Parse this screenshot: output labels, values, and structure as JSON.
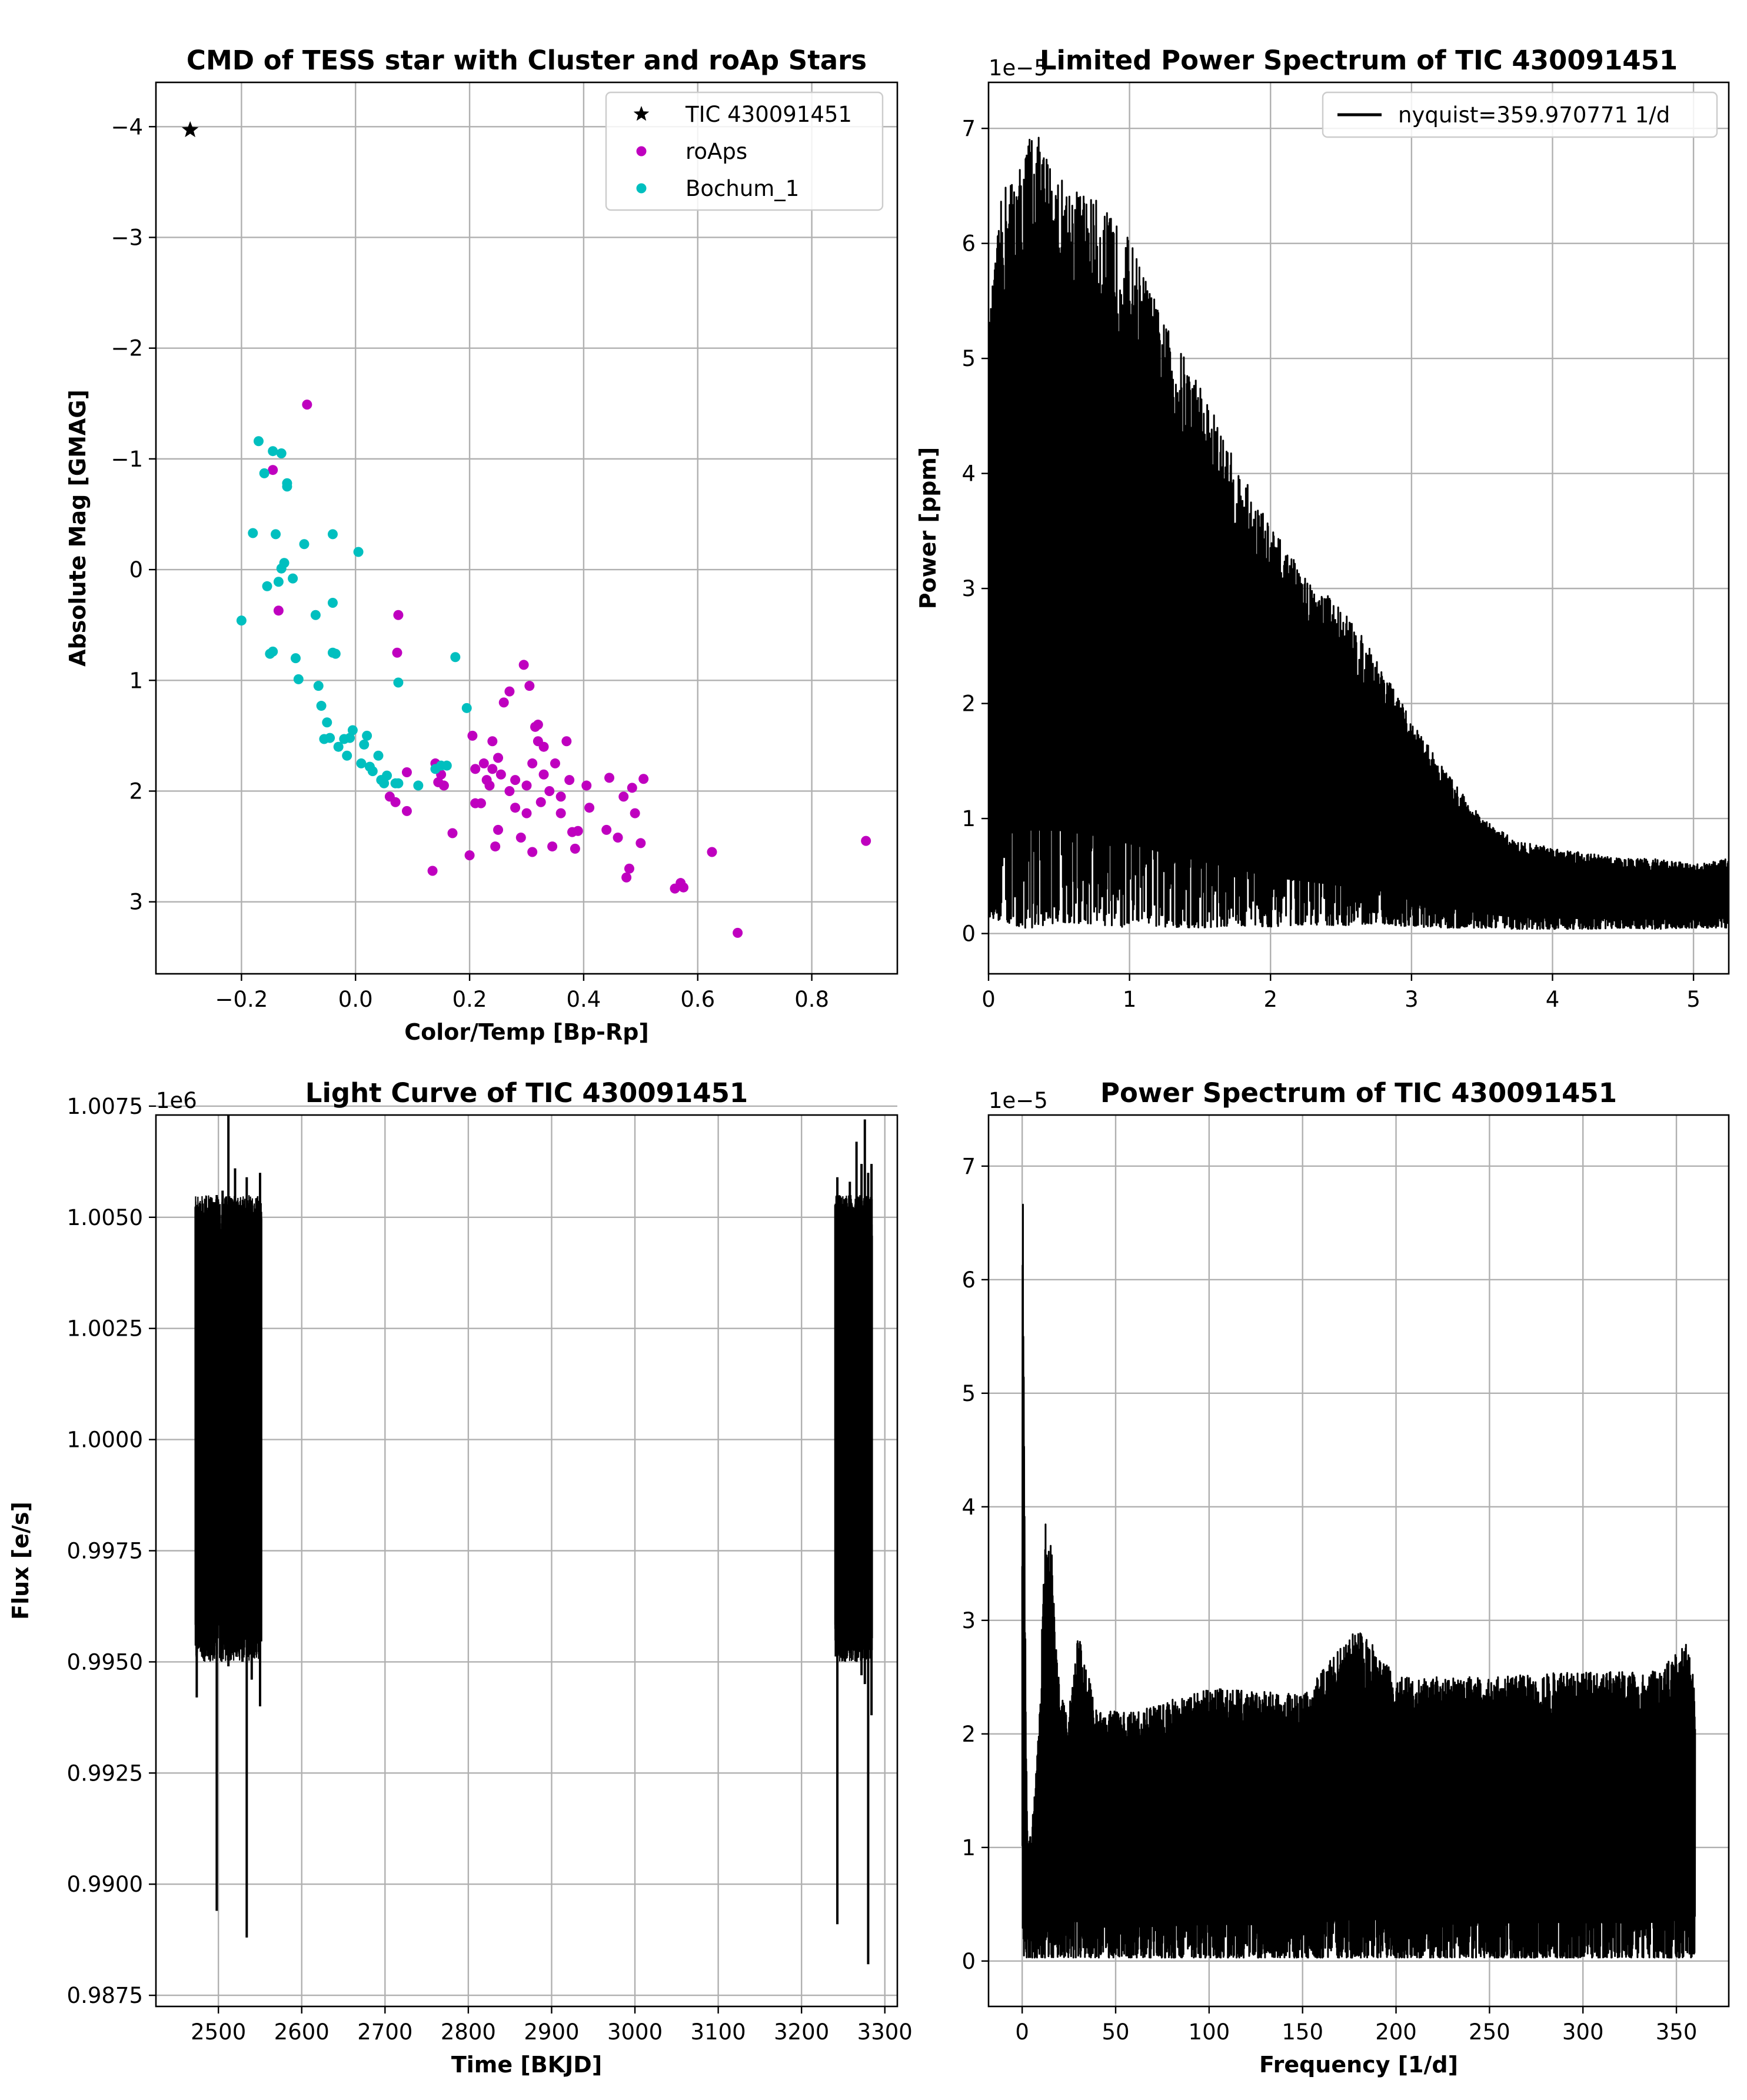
{
  "chart_data": [
    {
      "id": "cmd",
      "type": "scatter",
      "title": "CMD of TESS star with Cluster and roAp Stars",
      "xlabel": "Color/Temp [Bp-Rp]",
      "ylabel": "Absolute Mag [GMAG]",
      "xlim": [
        -0.35,
        0.95
      ],
      "ylim": [
        3.65,
        -4.4
      ],
      "y_inverted": true,
      "grid": true,
      "legend_position": "top-right",
      "xticks": [
        -0.2,
        0.0,
        0.2,
        0.4,
        0.6,
        0.8
      ],
      "xtick_labels": [
        "−0.2",
        "0.0",
        "0.2",
        "0.4",
        "0.6",
        "0.8"
      ],
      "yticks": [
        -4,
        -3,
        -2,
        -1,
        0,
        1,
        2,
        3
      ],
      "ytick_labels": [
        "−4",
        "−3",
        "−2",
        "−1",
        "0",
        "1",
        "2",
        "3"
      ],
      "series": [
        {
          "name": "TIC 430091451",
          "marker": "star",
          "color": "#000000",
          "points": [
            [
              -0.29,
              -3.97
            ]
          ]
        },
        {
          "name": "roAps",
          "marker": "circle",
          "color": "#bf00bf",
          "points": [
            [
              -0.085,
              -1.49
            ],
            [
              -0.145,
              -0.9
            ],
            [
              -0.135,
              0.37
            ],
            [
              0.075,
              0.41
            ],
            [
              0.073,
              0.75
            ],
            [
              0.09,
              1.83
            ],
            [
              0.06,
              2.05
            ],
            [
              0.07,
              2.1
            ],
            [
              0.09,
              2.18
            ],
            [
              0.135,
              2.72
            ],
            [
              0.14,
              1.75
            ],
            [
              0.15,
              1.85
            ],
            [
              0.155,
              1.95
            ],
            [
              0.145,
              1.92
            ],
            [
              0.17,
              2.38
            ],
            [
              0.2,
              2.58
            ],
            [
              0.205,
              1.5
            ],
            [
              0.21,
              1.8
            ],
            [
              0.21,
              2.11
            ],
            [
              0.22,
              2.11
            ],
            [
              0.225,
              1.75
            ],
            [
              0.23,
              1.9
            ],
            [
              0.235,
              1.95
            ],
            [
              0.24,
              1.55
            ],
            [
              0.24,
              1.8
            ],
            [
              0.245,
              2.5
            ],
            [
              0.25,
              1.7
            ],
            [
              0.25,
              2.35
            ],
            [
              0.255,
              1.85
            ],
            [
              0.26,
              1.2
            ],
            [
              0.27,
              2.0
            ],
            [
              0.27,
              1.1
            ],
            [
              0.28,
              1.9
            ],
            [
              0.28,
              2.15
            ],
            [
              0.29,
              2.42
            ],
            [
              0.295,
              0.86
            ],
            [
              0.3,
              1.95
            ],
            [
              0.3,
              2.2
            ],
            [
              0.305,
              1.05
            ],
            [
              0.31,
              1.75
            ],
            [
              0.31,
              2.55
            ],
            [
              0.315,
              1.42
            ],
            [
              0.32,
              1.55
            ],
            [
              0.32,
              1.4
            ],
            [
              0.325,
              2.1
            ],
            [
              0.33,
              1.85
            ],
            [
              0.33,
              1.6
            ],
            [
              0.34,
              2.0
            ],
            [
              0.345,
              2.5
            ],
            [
              0.35,
              1.75
            ],
            [
              0.36,
              2.2
            ],
            [
              0.36,
              2.05
            ],
            [
              0.37,
              1.55
            ],
            [
              0.375,
              1.9
            ],
            [
              0.38,
              2.37
            ],
            [
              0.385,
              2.52
            ],
            [
              0.39,
              2.36
            ],
            [
              0.405,
              1.95
            ],
            [
              0.41,
              2.15
            ],
            [
              0.44,
              2.35
            ],
            [
              0.445,
              1.88
            ],
            [
              0.46,
              2.42
            ],
            [
              0.47,
              2.05
            ],
            [
              0.475,
              2.78
            ],
            [
              0.48,
              2.7
            ],
            [
              0.485,
              1.97
            ],
            [
              0.49,
              2.2
            ],
            [
              0.5,
              2.47
            ],
            [
              0.505,
              1.89
            ],
            [
              0.56,
              2.88
            ],
            [
              0.57,
              2.83
            ],
            [
              0.575,
              2.87
            ],
            [
              0.625,
              2.55
            ],
            [
              0.67,
              3.28
            ],
            [
              0.895,
              2.45
            ]
          ]
        },
        {
          "name": "Bochum_1",
          "marker": "circle",
          "color": "#00bfbf",
          "points": [
            [
              -0.2,
              0.46
            ],
            [
              -0.18,
              -0.33
            ],
            [
              -0.17,
              -1.16
            ],
            [
              -0.16,
              -0.87
            ],
            [
              -0.155,
              0.15
            ],
            [
              -0.15,
              0.76
            ],
            [
              -0.145,
              -1.07
            ],
            [
              -0.145,
              0.74
            ],
            [
              -0.14,
              -0.32
            ],
            [
              -0.135,
              0.11
            ],
            [
              -0.13,
              -1.05
            ],
            [
              -0.125,
              -0.06
            ],
            [
              -0.13,
              -0.01
            ],
            [
              -0.12,
              -0.75
            ],
            [
              -0.12,
              -0.78
            ],
            [
              -0.11,
              0.08
            ],
            [
              -0.105,
              0.8
            ],
            [
              -0.1,
              0.99
            ],
            [
              -0.09,
              -0.23
            ],
            [
              -0.07,
              0.41
            ],
            [
              -0.065,
              1.05
            ],
            [
              -0.06,
              1.23
            ],
            [
              -0.055,
              1.53
            ],
            [
              -0.05,
              1.38
            ],
            [
              -0.045,
              1.52
            ],
            [
              -0.04,
              0.75
            ],
            [
              -0.04,
              -0.32
            ],
            [
              -0.04,
              0.3
            ],
            [
              -0.035,
              0.76
            ],
            [
              -0.03,
              1.6
            ],
            [
              -0.02,
              1.53
            ],
            [
              -0.01,
              1.52
            ],
            [
              -0.015,
              1.68
            ],
            [
              -0.005,
              1.45
            ],
            [
              0.005,
              -0.16
            ],
            [
              0.01,
              1.75
            ],
            [
              0.015,
              1.58
            ],
            [
              0.02,
              1.5
            ],
            [
              0.025,
              1.78
            ],
            [
              0.03,
              1.82
            ],
            [
              0.04,
              1.68
            ],
            [
              0.045,
              1.9
            ],
            [
              0.05,
              1.93
            ],
            [
              0.055,
              1.86
            ],
            [
              0.07,
              1.93
            ],
            [
              0.075,
              1.93
            ],
            [
              0.075,
              1.02
            ],
            [
              0.11,
              1.95
            ],
            [
              0.14,
              1.8
            ],
            [
              0.15,
              1.77
            ],
            [
              0.16,
              1.77
            ],
            [
              0.175,
              0.79
            ],
            [
              0.195,
              1.25
            ]
          ]
        }
      ]
    },
    {
      "id": "limited_power",
      "type": "line",
      "title": "Limited Power Spectrum of TIC 430091451",
      "xlabel": "",
      "ylabel": "Power [ppm]",
      "xlim": [
        0,
        5.25
      ],
      "ylim": [
        -0.35,
        7.4
      ],
      "y_scale_label": "1e−5",
      "grid": true,
      "legend_position": "top-right",
      "xticks": [
        0,
        1,
        2,
        3,
        4,
        5
      ],
      "xtick_labels": [
        "0",
        "1",
        "2",
        "3",
        "4",
        "5"
      ],
      "yticks": [
        0,
        1,
        2,
        3,
        4,
        5,
        6,
        7
      ],
      "ytick_labels": [
        "0",
        "1",
        "2",
        "3",
        "4",
        "5",
        "6",
        "7"
      ],
      "series": [
        {
          "name": "nyquist=359.970771 1/d",
          "color": "#000000",
          "envelope_x": [
            0.0,
            0.1,
            0.25,
            0.3,
            0.5,
            0.75,
            1.0,
            1.25,
            1.5,
            1.75,
            2.0,
            2.25,
            2.5,
            2.75,
            3.0,
            3.25,
            3.5,
            3.75,
            4.0,
            4.25,
            4.5,
            4.75,
            5.0,
            5.25
          ],
          "envelope_top": [
            5.3,
            6.5,
            6.75,
            7.05,
            6.6,
            6.4,
            6.05,
            5.3,
            4.8,
            4.1,
            3.55,
            3.1,
            2.85,
            2.4,
            1.85,
            1.4,
            1.0,
            0.8,
            0.75,
            0.7,
            0.65,
            0.65,
            0.6,
            0.65
          ],
          "envelope_bottom": [
            0.15,
            0.1,
            0.05,
            0.05,
            0.1,
            0.08,
            0.05,
            0.06,
            0.05,
            0.07,
            0.06,
            0.08,
            0.07,
            0.09,
            0.06,
            0.05,
            0.05,
            0.04,
            0.04,
            0.04,
            0.05,
            0.04,
            0.05,
            0.05
          ]
        }
      ]
    },
    {
      "id": "light_curve",
      "type": "line",
      "title": "Light Curve of TIC 430091451",
      "xlabel": "Time [BKJD]",
      "ylabel": "Flux [e/s]",
      "xlim": [
        2425,
        3315
      ],
      "ylim": [
        0.98725,
        1.0073
      ],
      "y_scale_label": "1e6",
      "grid": true,
      "xticks": [
        2500,
        2600,
        2700,
        2800,
        2900,
        3000,
        3100,
        3200,
        3300
      ],
      "xtick_labels": [
        "2500",
        "2600",
        "2700",
        "2800",
        "2900",
        "3000",
        "3100",
        "3200",
        "3300"
      ],
      "yticks": [
        0.9875,
        0.99,
        0.9925,
        0.995,
        0.9975,
        1.0,
        1.0025,
        1.005,
        1.0075
      ],
      "ytick_labels": [
        "0.9875",
        "0.9900",
        "0.9925",
        "0.9950",
        "0.9975",
        "1.0000",
        "1.0025",
        "1.0050",
        "1.0075"
      ],
      "segments": [
        {
          "x_range": [
            2472,
            2552
          ],
          "band": [
            0.9965,
            1.004
          ],
          "spikes": [
            [
              2474,
              0.9942,
              1.0051
            ],
            [
              2485,
              0.9955,
              1.0052
            ],
            [
              2498,
              0.9894,
              1.0055
            ],
            [
              2505,
              0.9952,
              1.0056
            ],
            [
              2512,
              0.9949,
              1.0082
            ],
            [
              2520,
              0.9953,
              1.0061
            ],
            [
              2530,
              0.9951,
              1.0052
            ],
            [
              2534,
              0.9888,
              1.0059
            ],
            [
              2540,
              0.9946,
              1.0052
            ],
            [
              2550,
              0.994,
              1.006
            ]
          ]
        },
        {
          "x_range": [
            3240,
            3285
          ],
          "band": [
            0.9965,
            1.004
          ],
          "spikes": [
            [
              3243,
              0.9891,
              1.0059
            ],
            [
              3250,
              0.9955,
              1.0053
            ],
            [
              3258,
              0.9952,
              1.0058
            ],
            [
              3266,
              0.995,
              1.0067
            ],
            [
              3272,
              0.9947,
              1.0062
            ],
            [
              3276,
              0.9945,
              1.0072
            ],
            [
              3280,
              0.9882,
              1.006
            ],
            [
              3284,
              0.9938,
              1.0062
            ]
          ]
        }
      ]
    },
    {
      "id": "power_spectrum",
      "type": "line",
      "title": "Power Spectrum of TIC 430091451",
      "xlabel": "Frequency [1/d]",
      "ylabel": "",
      "xlim": [
        -18,
        378
      ],
      "ylim": [
        -0.4,
        7.45
      ],
      "y_scale_label": "1e−5",
      "grid": true,
      "xticks": [
        0,
        50,
        100,
        150,
        200,
        250,
        300,
        350
      ],
      "xtick_labels": [
        "0",
        "50",
        "100",
        "150",
        "200",
        "250",
        "300",
        "350"
      ],
      "yticks": [
        0,
        1,
        2,
        3,
        4,
        5,
        6,
        7
      ],
      "ytick_labels": [
        "0",
        "1",
        "2",
        "3",
        "4",
        "5",
        "6",
        "7"
      ],
      "series": [
        {
          "name": "",
          "color": "#000000",
          "envelope_x": [
            0,
            0.3,
            2,
            3,
            5,
            8,
            10,
            12,
            14,
            16,
            18,
            20,
            25,
            30,
            40,
            60,
            100,
            150,
            180,
            200,
            250,
            300,
            340,
            356,
            360
          ],
          "envelope_top": [
            4.0,
            7.05,
            2.0,
            1.0,
            1.2,
            1.8,
            2.5,
            3.95,
            3.6,
            3.7,
            2.8,
            2.4,
            2.2,
            2.9,
            2.2,
            2.2,
            2.4,
            2.35,
            2.95,
            2.5,
            2.5,
            2.55,
            2.55,
            2.8,
            2.4
          ],
          "envelope_bottom": [
            0.05,
            0.05,
            0.03,
            0.03,
            0.03,
            0.03,
            0.03,
            0.03,
            0.03,
            0.03,
            0.03,
            0.03,
            0.03,
            0.03,
            0.03,
            0.03,
            0.03,
            0.03,
            0.03,
            0.03,
            0.03,
            0.03,
            0.03,
            0.03,
            0.03
          ]
        }
      ]
    }
  ]
}
